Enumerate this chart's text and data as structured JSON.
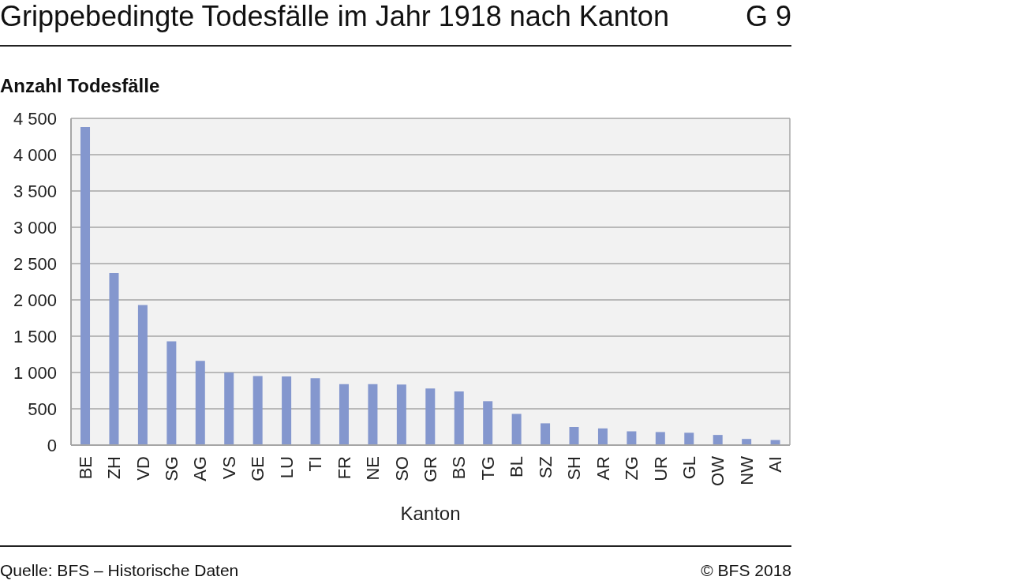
{
  "chart_data": {
    "type": "bar",
    "title": "Grippebedingte Todesfälle im Jahr 1918 nach Kanton",
    "subtitle": "G 9",
    "ylabel": "Anzahl Todesfälle",
    "xlabel": "Kanton",
    "categories": [
      "BE",
      "ZH",
      "VD",
      "SG",
      "AG",
      "VS",
      "GE",
      "LU",
      "TI",
      "FR",
      "NE",
      "SO",
      "GR",
      "BS",
      "TG",
      "BL",
      "SZ",
      "SH",
      "AR",
      "ZG",
      "UR",
      "GL",
      "OW",
      "NW",
      "AI"
    ],
    "values": [
      4380,
      2370,
      1930,
      1430,
      1160,
      1000,
      950,
      945,
      920,
      840,
      840,
      835,
      780,
      740,
      605,
      430,
      300,
      250,
      230,
      190,
      180,
      170,
      140,
      85,
      70
    ],
    "color": "#8497ce",
    "ylim": [
      0,
      4500
    ],
    "yticks": [
      0,
      500,
      {
        "value": 1000,
        "label": "1 000"
      },
      {
        "value": 1500,
        "label": "1 500"
      },
      {
        "value": 2000,
        "label": "2 000"
      },
      {
        "value": 2500,
        "label": "2 500"
      },
      {
        "value": 3000,
        "label": "3 000"
      },
      {
        "value": 3500,
        "label": "3 500"
      },
      {
        "value": 4000,
        "label": "4 000"
      },
      {
        "value": 4500,
        "label": "4 500"
      }
    ],
    "grid": "y",
    "annotations": [
      "Quelle: BFS – Historische Daten",
      "© BFS 2018"
    ]
  }
}
